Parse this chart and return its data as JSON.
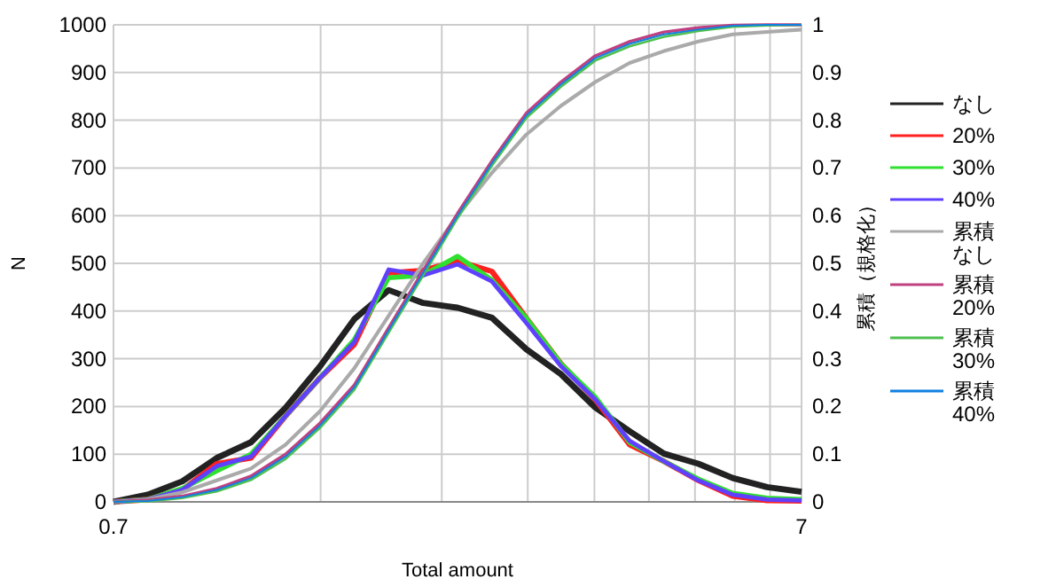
{
  "chart_data": {
    "type": "line",
    "xlabel": "Total amount",
    "ylabel": "N",
    "y2label": "累積（規格化）",
    "log": "x",
    "x": [
      0.7,
      0.785,
      0.881,
      0.989,
      1.109,
      1.245,
      1.397,
      1.567,
      1.758,
      1.973,
      2.214,
      2.484,
      2.787,
      3.127,
      3.509,
      3.937,
      4.417,
      4.956,
      5.561,
      6.239,
      7
    ],
    "xlim": [
      0.7,
      7
    ],
    "xticks": [
      0.7,
      {
        "value": 1.4,
        "label": null
      },
      {
        "value": 2.1,
        "label": null
      },
      {
        "value": 2.8,
        "label": null
      },
      {
        "value": 3.5,
        "label": null
      },
      {
        "value": 4.2,
        "label": null
      },
      {
        "value": 4.9,
        "label": null
      },
      {
        "value": 5.6,
        "label": null
      },
      {
        "value": 6.3,
        "label": null
      },
      7
    ],
    "ylim": [
      0,
      1000
    ],
    "yticks": [
      0,
      100,
      200,
      300,
      400,
      500,
      600,
      700,
      800,
      900,
      1000
    ],
    "y2lim": [
      0,
      1
    ],
    "y2ticks": [
      0,
      0.1,
      0.2,
      0.3,
      0.4,
      0.5,
      0.6,
      0.7,
      0.8,
      0.9,
      1
    ],
    "grid": true,
    "legend": "right",
    "marker": "none",
    "line_style": "solid",
    "series": [
      {
        "name": "なし",
        "color": "#222222",
        "values": [
          0,
          15,
          43,
          92,
          125,
          197,
          284,
          383,
          444,
          417,
          407,
          386,
          320,
          268,
          198,
          148,
          101,
          80,
          50,
          31,
          21
        ]
      },
      {
        "name": "20%",
        "color": "#ff2020",
        "values": [
          0,
          5,
          25,
          80,
          92,
          180,
          260,
          330,
          480,
          485,
          505,
          483,
          385,
          290,
          215,
          120,
          85,
          45,
          12,
          3,
          2
        ]
      },
      {
        "name": "30%",
        "color": "#30e030",
        "values": [
          0,
          5,
          28,
          65,
          100,
          180,
          260,
          340,
          470,
          475,
          515,
          465,
          385,
          290,
          220,
          125,
          85,
          48,
          18,
          8,
          5
        ]
      },
      {
        "name": "40%",
        "color": "#6040ff",
        "values": [
          0,
          5,
          25,
          75,
          95,
          180,
          260,
          335,
          487,
          475,
          498,
          462,
          375,
          285,
          215,
          128,
          85,
          45,
          15,
          5,
          3
        ]
      },
      {
        "name": "累積なし",
        "color": "#aaaaaa",
        "axis": "y2",
        "values": [
          0,
          0.005,
          0.02,
          0.045,
          0.07,
          0.12,
          0.19,
          0.28,
          0.39,
          0.5,
          0.6,
          0.69,
          0.77,
          0.83,
          0.88,
          0.92,
          0.945,
          0.965,
          0.98,
          0.985,
          0.99
        ]
      },
      {
        "name": "累積20%",
        "color": "#c04080",
        "axis": "y2",
        "values": [
          0,
          0.004,
          0.012,
          0.028,
          0.054,
          0.1,
          0.165,
          0.245,
          0.365,
          0.485,
          0.605,
          0.715,
          0.815,
          0.88,
          0.935,
          0.965,
          0.985,
          0.994,
          0.999,
          1,
          1
        ]
      },
      {
        "name": "累積30%",
        "color": "#50c050",
        "axis": "y2",
        "values": [
          0,
          0.001,
          0.008,
          0.022,
          0.046,
          0.09,
          0.155,
          0.235,
          0.355,
          0.475,
          0.595,
          0.705,
          0.805,
          0.87,
          0.925,
          0.955,
          0.975,
          0.987,
          0.996,
          0.999,
          1
        ]
      },
      {
        "name": "累積40%",
        "color": "#1080e0",
        "axis": "y2",
        "values": [
          0,
          0.002,
          0.01,
          0.025,
          0.05,
          0.095,
          0.16,
          0.24,
          0.36,
          0.48,
          0.6,
          0.71,
          0.81,
          0.875,
          0.93,
          0.96,
          0.98,
          0.99,
          0.998,
          1,
          1
        ]
      }
    ]
  }
}
